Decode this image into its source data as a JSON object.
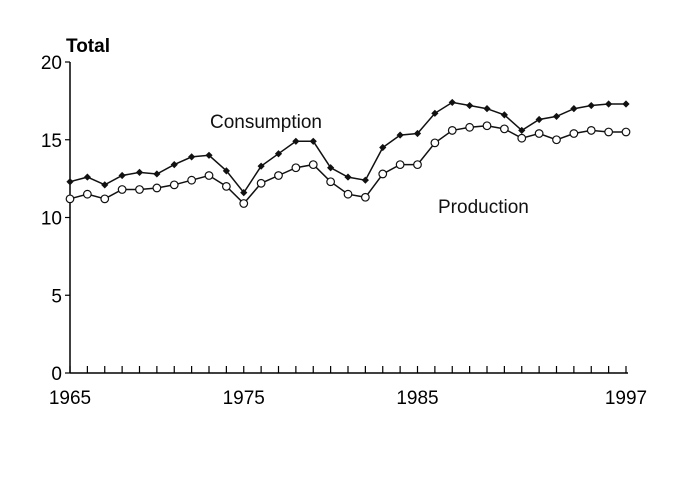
{
  "chart_data": {
    "type": "line",
    "ylabel": "Total",
    "xlim": [
      1965,
      1997
    ],
    "ylim": [
      0,
      20
    ],
    "x_ticks": [
      1965,
      1975,
      1985,
      1997
    ],
    "y_ticks": [
      0,
      5,
      10,
      15,
      20
    ],
    "x": [
      1965,
      1966,
      1967,
      1968,
      1969,
      1970,
      1971,
      1972,
      1973,
      1974,
      1975,
      1976,
      1977,
      1978,
      1979,
      1980,
      1981,
      1982,
      1983,
      1984,
      1985,
      1986,
      1987,
      1988,
      1989,
      1990,
      1991,
      1992,
      1993,
      1994,
      1995,
      1996,
      1997
    ],
    "series": [
      {
        "name": "Consumption",
        "marker": "filled-diamond",
        "values": [
          12.3,
          12.6,
          12.1,
          12.7,
          12.9,
          12.8,
          13.4,
          13.9,
          14.0,
          13.0,
          11.6,
          13.3,
          14.1,
          14.9,
          14.9,
          13.2,
          12.6,
          12.4,
          14.5,
          15.3,
          15.4,
          16.7,
          17.4,
          17.2,
          17.0,
          16.6,
          15.6,
          16.3,
          16.5,
          17.0,
          17.2,
          17.3,
          17.3
        ]
      },
      {
        "name": "Production",
        "marker": "open-circle",
        "values": [
          11.2,
          11.5,
          11.2,
          11.8,
          11.8,
          11.9,
          12.1,
          12.4,
          12.7,
          12.0,
          10.9,
          12.2,
          12.7,
          13.2,
          13.4,
          12.3,
          11.5,
          11.3,
          12.8,
          13.4,
          13.4,
          14.8,
          15.6,
          15.8,
          15.9,
          15.7,
          15.1,
          15.4,
          15.0,
          15.4,
          15.6,
          15.5,
          15.5
        ]
      }
    ],
    "colors": {
      "line": "#111111",
      "axis": "#000000"
    }
  }
}
